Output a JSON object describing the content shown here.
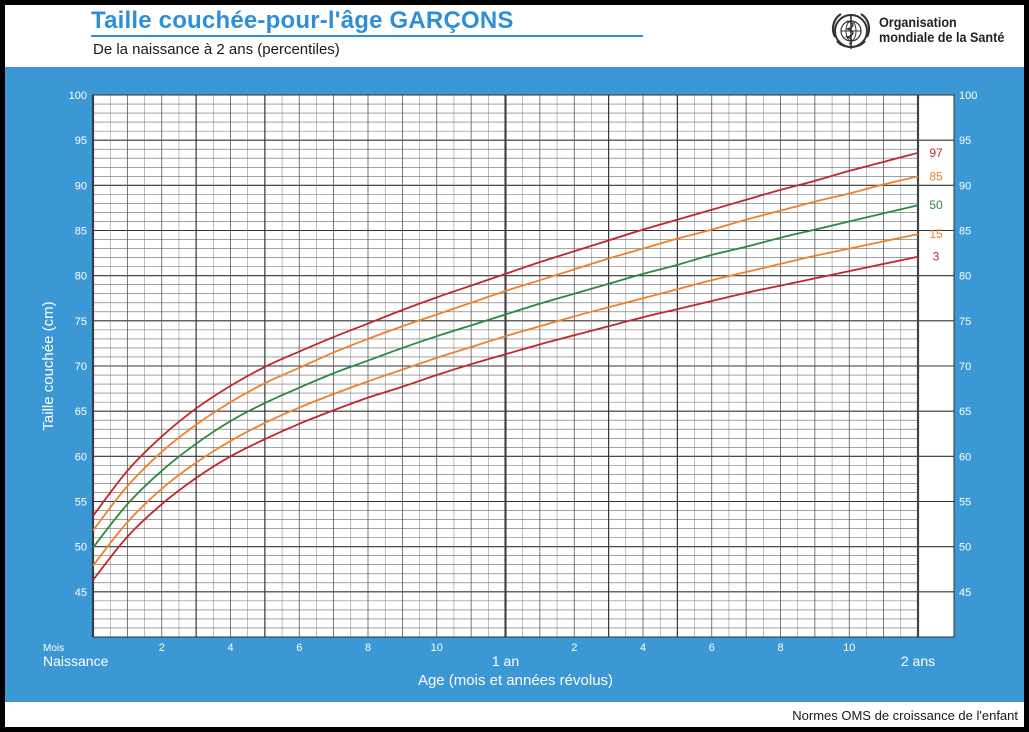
{
  "header": {
    "title": "Taille couchée-pour-l'âge  GARÇONS",
    "subtitle": "De la naissance à 2 ans (percentiles)",
    "org_line1": "Organisation",
    "org_line2": "mondiale de la Santé"
  },
  "footer": {
    "text": "Normes OMS de croissance de l'enfant"
  },
  "colors": {
    "title": "#2e8fd8",
    "panel": "#3b98d4",
    "p3_p97": "#c0272d",
    "p15_p85": "#f0812a",
    "p50": "#2b8a3e"
  },
  "chart_data": {
    "type": "line",
    "xlabel": "Age (mois et années révolus)",
    "ylabel": "Taille couchée (cm)",
    "xlim": [
      0,
      24
    ],
    "ylim": [
      40,
      100
    ],
    "grid": true,
    "x_unit_label": "Mois",
    "x_year_labels": [
      {
        "month": 0,
        "label": "Naissance"
      },
      {
        "month": 12,
        "label": "1 an"
      },
      {
        "month": 24,
        "label": "2 ans"
      }
    ],
    "x_ticks": [
      {
        "month": 2,
        "label": "2"
      },
      {
        "month": 4,
        "label": "4"
      },
      {
        "month": 6,
        "label": "6"
      },
      {
        "month": 8,
        "label": "8"
      },
      {
        "month": 10,
        "label": "10"
      },
      {
        "month": 14,
        "label": "2"
      },
      {
        "month": 16,
        "label": "4"
      },
      {
        "month": 18,
        "label": "6"
      },
      {
        "month": 20,
        "label": "8"
      },
      {
        "month": 22,
        "label": "10"
      }
    ],
    "y_ticks": [
      45,
      50,
      55,
      60,
      65,
      70,
      75,
      80,
      85,
      90,
      95,
      100
    ],
    "x": [
      0,
      1,
      2,
      3,
      4,
      5,
      6,
      7,
      8,
      9,
      10,
      11,
      12,
      13,
      14,
      15,
      16,
      17,
      18,
      19,
      20,
      21,
      22,
      23,
      24
    ],
    "series": [
      {
        "name": "3",
        "color": "#c0272d",
        "values": [
          46.3,
          51.1,
          54.7,
          57.6,
          60.0,
          61.9,
          63.6,
          65.1,
          66.5,
          67.7,
          69.0,
          70.2,
          71.3,
          72.4,
          73.4,
          74.4,
          75.4,
          76.3,
          77.2,
          78.1,
          78.9,
          79.7,
          80.5,
          81.3,
          82.1
        ]
      },
      {
        "name": "15",
        "color": "#f0812a",
        "values": [
          47.9,
          52.7,
          56.4,
          59.3,
          61.7,
          63.7,
          65.4,
          66.9,
          68.3,
          69.6,
          70.9,
          72.1,
          73.3,
          74.4,
          75.5,
          76.5,
          77.5,
          78.5,
          79.5,
          80.4,
          81.3,
          82.2,
          83.0,
          83.8,
          84.6
        ]
      },
      {
        "name": "50",
        "color": "#2b8a3e",
        "values": [
          49.9,
          54.7,
          58.4,
          61.4,
          63.9,
          65.9,
          67.6,
          69.2,
          70.6,
          72.0,
          73.3,
          74.5,
          75.7,
          76.9,
          78.0,
          79.1,
          80.2,
          81.2,
          82.3,
          83.2,
          84.2,
          85.1,
          86.0,
          86.9,
          87.8
        ]
      },
      {
        "name": "85",
        "color": "#f0812a",
        "values": [
          51.8,
          56.7,
          60.5,
          63.5,
          66.0,
          68.1,
          69.8,
          71.5,
          73.0,
          74.4,
          75.7,
          77.0,
          78.3,
          79.5,
          80.7,
          81.9,
          83.0,
          84.1,
          85.1,
          86.2,
          87.2,
          88.2,
          89.1,
          90.1,
          91.0
        ]
      },
      {
        "name": "97",
        "color": "#c0272d",
        "values": [
          53.4,
          58.4,
          62.2,
          65.3,
          67.8,
          69.9,
          71.6,
          73.2,
          74.7,
          76.2,
          77.6,
          78.9,
          80.2,
          81.5,
          82.7,
          83.9,
          85.1,
          86.2,
          87.3,
          88.4,
          89.5,
          90.5,
          91.6,
          92.6,
          93.6
        ]
      }
    ]
  }
}
